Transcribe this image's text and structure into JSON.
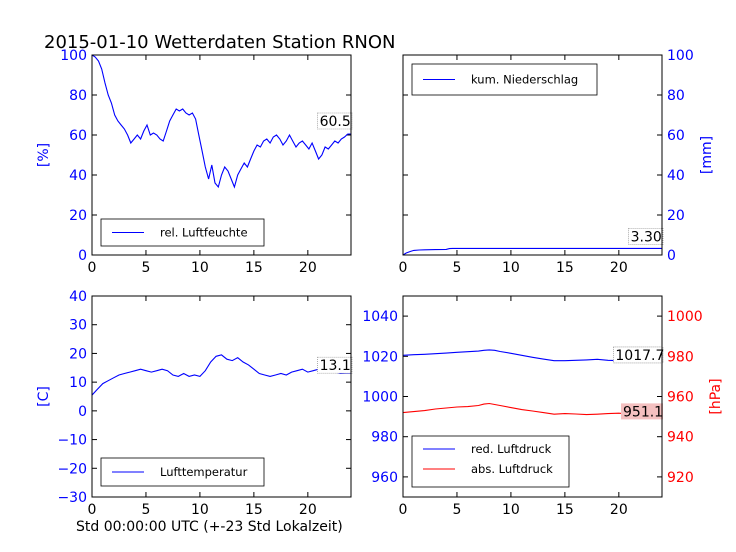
{
  "chart_data": {
    "title": "2015-01-10 Wetterdaten Station RNON",
    "xlabel": "Std 00:00:00 UTC (+-23 Std Lokalzeit)",
    "colors": {
      "primary": "#0000ff",
      "secondary": "#ff0000",
      "annotation_bg_red": "#f4c0c0"
    },
    "panels": [
      {
        "id": "humidity",
        "type": "line",
        "xlim": [
          0,
          24
        ],
        "xticks": [
          "0",
          "5",
          "10",
          "15",
          "20"
        ],
        "ylim": [
          0,
          100
        ],
        "yticks": [
          "0",
          "20",
          "40",
          "60",
          "80",
          "100"
        ],
        "ylabel": "[%]",
        "yaxis_side": "left",
        "legend": "bottom-left",
        "annotation": "60.5",
        "series": [
          {
            "name": "rel. Luftfeuchte",
            "color": "#0000ff",
            "x": [
              0,
              0.3,
              0.6,
              0.9,
              1.2,
              1.5,
              1.8,
              2.1,
              2.4,
              2.7,
              3.0,
              3.3,
              3.6,
              3.9,
              4.2,
              4.5,
              4.8,
              5.1,
              5.4,
              5.7,
              6.0,
              6.3,
              6.6,
              6.9,
              7.2,
              7.5,
              7.8,
              8.1,
              8.4,
              8.7,
              9.0,
              9.3,
              9.6,
              9.9,
              10.2,
              10.5,
              10.8,
              11.1,
              11.4,
              11.7,
              12.0,
              12.3,
              12.6,
              12.9,
              13.2,
              13.5,
              13.8,
              14.1,
              14.4,
              14.7,
              15.0,
              15.3,
              15.6,
              15.9,
              16.2,
              16.5,
              16.8,
              17.1,
              17.4,
              17.7,
              18.0,
              18.3,
              18.6,
              18.9,
              19.2,
              19.5,
              19.8,
              20.1,
              20.4,
              20.7,
              21.0,
              21.3,
              21.6,
              21.9,
              22.2,
              22.5,
              22.8,
              23.1,
              23.4,
              23.7,
              24.0
            ],
            "y": [
              100,
              99,
              97,
              93,
              86,
              80,
              76,
              70,
              67,
              65,
              63,
              60,
              56,
              58,
              60,
              58,
              62,
              65,
              60,
              61,
              60,
              58,
              57,
              62,
              67,
              70,
              73,
              72,
              73,
              71,
              70,
              71,
              68,
              60,
              52,
              44,
              38,
              45,
              36,
              34,
              40,
              44,
              42,
              38,
              34,
              40,
              43,
              46,
              44,
              48,
              52,
              55,
              54,
              57,
              58,
              56,
              59,
              60,
              58,
              55,
              57,
              60,
              57,
              54,
              56,
              57,
              55,
              53,
              56,
              52,
              48,
              50,
              54,
              53,
              55,
              57,
              56,
              58,
              59,
              60.5,
              60.5
            ]
          }
        ]
      },
      {
        "id": "precipitation",
        "type": "line",
        "xlim": [
          0,
          24
        ],
        "xticks": [
          "0",
          "5",
          "10",
          "15",
          "20"
        ],
        "ylim": [
          0,
          100
        ],
        "yticks": [
          "0",
          "20",
          "40",
          "60",
          "80",
          "100"
        ],
        "ylabel": "[mm]",
        "yaxis_side": "right",
        "legend": "top-left",
        "annotation": "3.30",
        "series": [
          {
            "name": "kum. Niederschlag",
            "color": "#0000ff",
            "x": [
              0,
              0.3,
              0.7,
              1.0,
              1.5,
              2.0,
              3.0,
              4.0,
              4.3,
              4.6,
              6.0,
              10.0,
              15.0,
              20.0,
              24.0
            ],
            "y": [
              0,
              1.0,
              1.8,
              2.3,
              2.5,
              2.6,
              2.7,
              2.8,
              3.2,
              3.3,
              3.3,
              3.3,
              3.3,
              3.3,
              3.3
            ]
          }
        ]
      },
      {
        "id": "temperature",
        "type": "line",
        "xlim": [
          0,
          24
        ],
        "xticks": [
          "0",
          "5",
          "10",
          "15",
          "20"
        ],
        "ylim": [
          -30,
          40
        ],
        "yticks": [
          "−30",
          "−20",
          "−10",
          "0",
          "10",
          "20",
          "30",
          "40"
        ],
        "ylabel": "[C]",
        "yaxis_side": "left",
        "legend": "bottom-left",
        "annotation": "13.1",
        "series": [
          {
            "name": "Lufttemperatur",
            "color": "#0000ff",
            "x": [
              0,
              0.5,
              1.0,
              1.5,
              2.0,
              2.5,
              3.0,
              3.5,
              4.0,
              4.5,
              5.0,
              5.5,
              6.0,
              6.5,
              7.0,
              7.5,
              8.0,
              8.5,
              9.0,
              9.5,
              10.0,
              10.5,
              11.0,
              11.5,
              12.0,
              12.5,
              13.0,
              13.5,
              14.0,
              14.5,
              15.0,
              15.5,
              16.0,
              16.5,
              17.0,
              17.5,
              18.0,
              18.5,
              19.0,
              19.5,
              20.0,
              20.5,
              21.0,
              21.5,
              22.0,
              22.5,
              23.0,
              23.5,
              24.0
            ],
            "y": [
              5.5,
              7.5,
              9.5,
              10.5,
              11.5,
              12.5,
              13.0,
              13.5,
              14.0,
              14.5,
              14.0,
              13.5,
              14.0,
              14.5,
              14.0,
              12.5,
              12.0,
              13.0,
              12.0,
              12.5,
              12.0,
              14.0,
              17.0,
              19.0,
              19.5,
              18.0,
              17.5,
              18.5,
              17.0,
              16.0,
              14.5,
              13.0,
              12.5,
              12.0,
              12.5,
              13.0,
              12.5,
              13.5,
              14.0,
              14.5,
              13.5,
              14.0,
              14.5,
              14.0,
              13.5,
              13.5,
              13.0,
              13.1,
              13.1
            ]
          }
        ]
      },
      {
        "id": "pressure",
        "type": "line",
        "xlim": [
          0,
          24
        ],
        "xticks": [
          "0",
          "5",
          "10",
          "15",
          "20"
        ],
        "ylim": [
          950,
          1050
        ],
        "yticks": [
          "960",
          "980",
          "1000",
          "1020",
          "1040"
        ],
        "y2lim": [
          910,
          1010
        ],
        "y2ticks": [
          "920",
          "940",
          "960",
          "980",
          "1000"
        ],
        "y2label": "[hPa]",
        "legend": "bottom-left",
        "annotations": [
          "1017.7",
          "951.1"
        ],
        "series": [
          {
            "name": "red. Luftdruck",
            "color": "#0000ff",
            "axis": "left",
            "x": [
              0,
              1,
              2,
              3,
              4,
              5,
              6,
              7,
              7.5,
              8,
              8.5,
              9,
              10,
              11,
              12,
              13,
              14,
              15,
              16,
              17,
              18,
              19,
              20,
              21,
              22,
              23,
              24
            ],
            "y": [
              1020.5,
              1020.8,
              1021.0,
              1021.3,
              1021.6,
              1022.0,
              1022.3,
              1022.6,
              1023.0,
              1023.2,
              1023.0,
              1022.4,
              1021.5,
              1020.5,
              1019.5,
              1018.6,
              1017.8,
              1017.8,
              1018.0,
              1018.2,
              1018.5,
              1018.0,
              1017.8,
              1017.6,
              1017.7,
              1017.7,
              1017.7
            ]
          },
          {
            "name": "abs. Luftdruck",
            "color": "#ff0000",
            "axis": "right",
            "x": [
              0,
              1,
              2,
              3,
              4,
              5,
              6,
              7,
              7.5,
              8,
              8.5,
              9,
              10,
              11,
              12,
              13,
              14,
              15,
              16,
              17,
              18,
              19,
              20,
              21,
              22,
              23,
              24
            ],
            "y": [
              952.0,
              952.5,
              953.0,
              953.8,
              954.3,
              954.8,
              955.0,
              955.5,
              956.2,
              956.5,
              956.0,
              955.5,
              954.5,
              953.5,
              952.8,
              952.0,
              951.2,
              951.5,
              951.3,
              951.0,
              951.2,
              951.5,
              951.7,
              951.3,
              951.1,
              951.1,
              951.1
            ]
          }
        ]
      }
    ]
  }
}
